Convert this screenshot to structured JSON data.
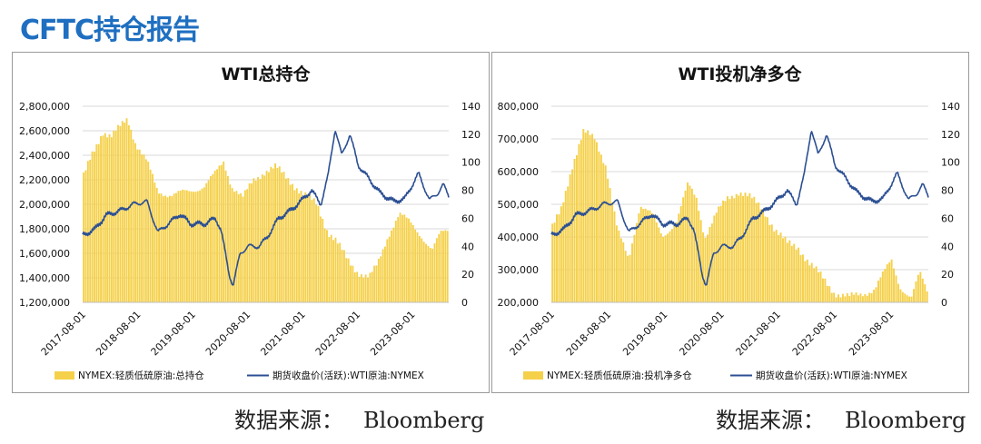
{
  "header": {
    "title": "CFTC持仓报告"
  },
  "sources": [
    {
      "label": "数据来源：",
      "value": "Bloomberg"
    },
    {
      "label": "数据来源：",
      "value": "Bloomberg"
    }
  ],
  "colors": {
    "bar": "#f5d04a",
    "line": "#2b4f93",
    "title": "#1f6fc1"
  },
  "chart_data": [
    {
      "type": "bar+line",
      "title": "WTI总持仓",
      "x_tick_labels": [
        "2017-08-01",
        "2018-08-01",
        "2019-08-01",
        "2020-08-01",
        "2021-08-01",
        "2022-08-01",
        "2023-08-01"
      ],
      "x_range": [
        2017.58,
        2024.25
      ],
      "y_left": {
        "min": 1200000,
        "max": 2800000,
        "step": 200000,
        "tick_labels": [
          "1,200,000",
          "1,400,000",
          "1,600,000",
          "1,800,000",
          "2,000,000",
          "2,200,000",
          "2,400,000",
          "2,600,000",
          "2,800,000"
        ]
      },
      "y_right": {
        "min": 0,
        "max": 140,
        "step": 20,
        "tick_labels": [
          "0",
          "20",
          "40",
          "60",
          "80",
          "100",
          "120",
          "140"
        ]
      },
      "series": [
        {
          "name": "NYMEX:轻质低硫原油:总持仓",
          "kind": "bar",
          "axis": "left",
          "anchors": [
            [
              2017.58,
              2200000
            ],
            [
              2017.75,
              2400000
            ],
            [
              2017.95,
              2600000
            ],
            [
              2018.1,
              2550000
            ],
            [
              2018.25,
              2620000
            ],
            [
              2018.4,
              2700000
            ],
            [
              2018.55,
              2500000
            ],
            [
              2018.75,
              2350000
            ],
            [
              2018.95,
              2100000
            ],
            [
              2019.2,
              2080000
            ],
            [
              2019.5,
              2100000
            ],
            [
              2019.8,
              2150000
            ],
            [
              2020.0,
              2250000
            ],
            [
              2020.15,
              2350000
            ],
            [
              2020.3,
              2150000
            ],
            [
              2020.5,
              2050000
            ],
            [
              2020.7,
              2200000
            ],
            [
              2020.9,
              2270000
            ],
            [
              2021.1,
              2300000
            ],
            [
              2021.35,
              2200000
            ],
            [
              2021.6,
              2080000
            ],
            [
              2021.85,
              2000000
            ],
            [
              2022.05,
              1780000
            ],
            [
              2022.2,
              1700000
            ],
            [
              2022.4,
              1550000
            ],
            [
              2022.6,
              1450000
            ],
            [
              2022.8,
              1400000
            ],
            [
              2022.95,
              1500000
            ],
            [
              2023.15,
              1750000
            ],
            [
              2023.35,
              1920000
            ],
            [
              2023.55,
              1850000
            ],
            [
              2023.75,
              1750000
            ],
            [
              2023.95,
              1620000
            ],
            [
              2024.1,
              1760000
            ],
            [
              2024.25,
              1800000
            ]
          ]
        },
        {
          "name": "期货收盘价(活跃):WTI原油:NYMEX",
          "kind": "line",
          "axis": "right",
          "anchors": [
            [
              2017.58,
              48
            ],
            [
              2017.8,
              52
            ],
            [
              2018.0,
              62
            ],
            [
              2018.3,
              66
            ],
            [
              2018.5,
              70
            ],
            [
              2018.75,
              72
            ],
            [
              2018.95,
              50
            ],
            [
              2019.2,
              58
            ],
            [
              2019.35,
              63
            ],
            [
              2019.55,
              56
            ],
            [
              2019.8,
              56
            ],
            [
              2020.0,
              60
            ],
            [
              2020.1,
              52
            ],
            [
              2020.25,
              20
            ],
            [
              2020.32,
              12
            ],
            [
              2020.45,
              35
            ],
            [
              2020.6,
              40
            ],
            [
              2020.8,
              40
            ],
            [
              2020.95,
              47
            ],
            [
              2021.15,
              60
            ],
            [
              2021.35,
              65
            ],
            [
              2021.55,
              72
            ],
            [
              2021.75,
              80
            ],
            [
              2021.92,
              70
            ],
            [
              2022.05,
              90
            ],
            [
              2022.18,
              124
            ],
            [
              2022.3,
              105
            ],
            [
              2022.45,
              120
            ],
            [
              2022.6,
              98
            ],
            [
              2022.8,
              88
            ],
            [
              2023.0,
              78
            ],
            [
              2023.25,
              72
            ],
            [
              2023.45,
              74
            ],
            [
              2023.7,
              92
            ],
            [
              2023.9,
              73
            ],
            [
              2024.05,
              78
            ],
            [
              2024.15,
              84
            ],
            [
              2024.25,
              76
            ]
          ]
        }
      ],
      "legend": [
        "NYMEX:轻质低硫原油:总持仓",
        "期货收盘价(活跃):WTI原油:NYMEX"
      ]
    },
    {
      "type": "bar+line",
      "title": "WTI投机净多仓",
      "x_tick_labels": [
        "2017-08-01",
        "2018-08-01",
        "2019-08-01",
        "2020-08-01",
        "2021-08-01",
        "2022-08-01",
        "2023-08-01"
      ],
      "x_range": [
        2017.58,
        2024.25
      ],
      "y_left": {
        "min": 200000,
        "max": 800000,
        "step": 100000,
        "tick_labels": [
          "200,000",
          "300,000",
          "400,000",
          "500,000",
          "600,000",
          "700,000",
          "800,000"
        ]
      },
      "y_right": {
        "min": 0,
        "max": 140,
        "step": 20,
        "tick_labels": [
          "0",
          "20",
          "40",
          "60",
          "80",
          "100",
          "120",
          "140"
        ]
      },
      "series": [
        {
          "name": "NYMEX:轻质低硫原油:投机净多仓",
          "kind": "bar",
          "axis": "left",
          "anchors": [
            [
              2017.58,
              420000
            ],
            [
              2017.75,
              480000
            ],
            [
              2017.95,
              620000
            ],
            [
              2018.15,
              720000
            ],
            [
              2018.35,
              700000
            ],
            [
              2018.55,
              620000
            ],
            [
              2018.75,
              420000
            ],
            [
              2018.95,
              330000
            ],
            [
              2019.15,
              500000
            ],
            [
              2019.35,
              470000
            ],
            [
              2019.55,
              400000
            ],
            [
              2019.8,
              450000
            ],
            [
              2020.0,
              560000
            ],
            [
              2020.15,
              520000
            ],
            [
              2020.3,
              400000
            ],
            [
              2020.5,
              470000
            ],
            [
              2020.7,
              520000
            ],
            [
              2020.9,
              540000
            ],
            [
              2021.1,
              520000
            ],
            [
              2021.35,
              480000
            ],
            [
              2021.55,
              420000
            ],
            [
              2021.75,
              380000
            ],
            [
              2021.95,
              370000
            ],
            [
              2022.15,
              320000
            ],
            [
              2022.35,
              280000
            ],
            [
              2022.6,
              230000
            ],
            [
              2022.85,
              215000
            ],
            [
              2023.05,
              225000
            ],
            [
              2023.3,
              240000
            ],
            [
              2023.5,
              300000
            ],
            [
              2023.6,
              330000
            ],
            [
              2023.75,
              250000
            ],
            [
              2023.95,
              210000
            ],
            [
              2024.1,
              290000
            ],
            [
              2024.25,
              230000
            ]
          ]
        },
        {
          "name": "期货收盘价(活跃):WTI原油:NYMEX",
          "kind": "line",
          "axis": "right",
          "anchors": [
            [
              2017.58,
              48
            ],
            [
              2017.8,
              52
            ],
            [
              2018.0,
              62
            ],
            [
              2018.3,
              66
            ],
            [
              2018.5,
              70
            ],
            [
              2018.75,
              72
            ],
            [
              2018.95,
              50
            ],
            [
              2019.2,
              58
            ],
            [
              2019.35,
              63
            ],
            [
              2019.55,
              56
            ],
            [
              2019.8,
              56
            ],
            [
              2020.0,
              60
            ],
            [
              2020.1,
              52
            ],
            [
              2020.25,
              20
            ],
            [
              2020.32,
              12
            ],
            [
              2020.45,
              35
            ],
            [
              2020.6,
              40
            ],
            [
              2020.8,
              40
            ],
            [
              2020.95,
              47
            ],
            [
              2021.15,
              60
            ],
            [
              2021.35,
              65
            ],
            [
              2021.55,
              72
            ],
            [
              2021.75,
              80
            ],
            [
              2021.92,
              70
            ],
            [
              2022.05,
              90
            ],
            [
              2022.18,
              124
            ],
            [
              2022.3,
              105
            ],
            [
              2022.45,
              120
            ],
            [
              2022.6,
              98
            ],
            [
              2022.8,
              88
            ],
            [
              2023.0,
              78
            ],
            [
              2023.25,
              72
            ],
            [
              2023.45,
              74
            ],
            [
              2023.7,
              92
            ],
            [
              2023.9,
              73
            ],
            [
              2024.05,
              78
            ],
            [
              2024.15,
              84
            ],
            [
              2024.25,
              76
            ]
          ]
        }
      ],
      "legend": [
        "NYMEX:轻质低硫原油:投机净多仓",
        "期货收盘价(活跃):WTI原油:NYMEX"
      ]
    }
  ]
}
